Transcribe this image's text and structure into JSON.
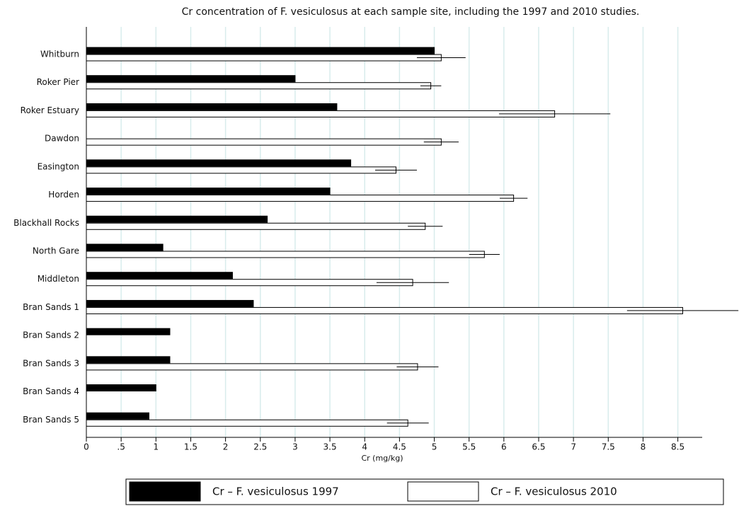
{
  "chart_data": {
    "type": "bar",
    "orientation": "horizontal",
    "title": "Cr concentration of F. vesiculosus at each sample site, including the 1997 and 2010 studies.",
    "x_label": "Cr (mg/kg)",
    "categories": [
      "Whitburn",
      "Roker Pier",
      "Roker Estuary",
      "Dawdon",
      "Easington",
      "Horden",
      "Blackhall Rocks",
      "North Gare",
      "Middleton",
      "Bran Sands 1",
      "Bran Sands 2",
      "Bran Sands 3",
      "Bran Sands 4",
      "Bran Sands 5"
    ],
    "series": [
      {
        "name": "Cr – F. vesiculosus 1997",
        "color": "#000000",
        "values": [
          5.0,
          3.0,
          3.6,
          null,
          3.8,
          3.5,
          2.6,
          1.1,
          2.1,
          2.4,
          1.2,
          1.2,
          1.0,
          0.9
        ]
      },
      {
        "name": "Cr – F. vesiculosus 2010",
        "color": "#ffffff",
        "values": [
          5.1,
          4.95,
          6.73,
          5.1,
          4.45,
          6.14,
          4.87,
          5.72,
          4.69,
          8.57,
          null,
          4.76,
          null,
          4.62
        ],
        "errors": [
          0.35,
          0.15,
          0.8,
          0.25,
          0.3,
          0.2,
          0.25,
          0.22,
          0.52,
          0.8,
          null,
          0.3,
          null,
          0.3
        ]
      }
    ],
    "xlim": [
      0,
      8.85
    ],
    "xticks": [
      0,
      {
        "value": 0.5,
        "label": ".5"
      },
      1,
      1.5,
      2,
      2.5,
      3,
      3.5,
      4,
      4.5,
      5,
      5.5,
      6,
      6.5,
      7,
      7.5,
      8,
      8.5
    ],
    "grid": true
  }
}
